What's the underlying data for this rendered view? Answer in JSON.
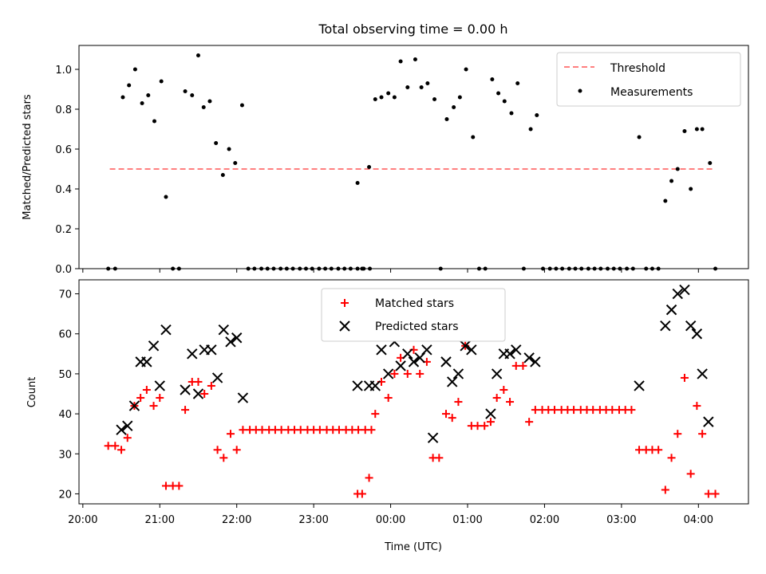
{
  "figure_title": "Total observing time = 0.00 h",
  "x_axis": {
    "label": "Time (UTC)",
    "tick_labels": [
      "20:00",
      "21:00",
      "22:00",
      "23:00",
      "00:00",
      "01:00",
      "02:00",
      "03:00",
      "04:00"
    ]
  },
  "chart_data": [
    {
      "type": "scatter",
      "panel": "top",
      "xlabel": "",
      "ylabel": "Matched/Predicted stars",
      "x_units": "hours since 20:00 UTC",
      "xlim": [
        -0.05,
        8.65
      ],
      "ylim": [
        0.0,
        1.12
      ],
      "yticks": [
        0.0,
        0.2,
        0.4,
        0.6,
        0.8,
        1.0
      ],
      "ytick_labels": [
        "0.0",
        "0.2",
        "0.4",
        "0.6",
        "0.8",
        "1.0"
      ],
      "legend": {
        "placement": "top-right"
      },
      "series": [
        {
          "name": "Threshold",
          "kind": "dashed-line",
          "color": "#ff7f7f",
          "x": [
            0.35,
            8.22
          ],
          "y": [
            0.5,
            0.5
          ]
        },
        {
          "name": "Measurements",
          "kind": "dot",
          "color": "#000000",
          "points": [
            [
              0.33,
              0.0
            ],
            [
              0.42,
              0.0
            ],
            [
              0.52,
              0.86
            ],
            [
              0.6,
              0.92
            ],
            [
              0.68,
              1.0
            ],
            [
              0.77,
              0.83
            ],
            [
              0.85,
              0.87
            ],
            [
              0.93,
              0.74
            ],
            [
              1.02,
              0.94
            ],
            [
              1.08,
              0.36
            ],
            [
              1.17,
              0.0
            ],
            [
              1.25,
              0.0
            ],
            [
              1.33,
              0.89
            ],
            [
              1.42,
              0.87
            ],
            [
              1.5,
              1.07
            ],
            [
              1.57,
              0.81
            ],
            [
              1.65,
              0.84
            ],
            [
              1.73,
              0.63
            ],
            [
              1.82,
              0.47
            ],
            [
              1.9,
              0.6
            ],
            [
              1.98,
              0.53
            ],
            [
              2.07,
              0.82
            ],
            [
              2.15,
              0.0
            ],
            [
              2.23,
              0.0
            ],
            [
              2.32,
              0.0
            ],
            [
              2.4,
              0.0
            ],
            [
              2.48,
              0.0
            ],
            [
              2.57,
              0.0
            ],
            [
              2.65,
              0.0
            ],
            [
              2.73,
              0.0
            ],
            [
              2.82,
              0.0
            ],
            [
              2.9,
              0.0
            ],
            [
              2.98,
              0.0
            ],
            [
              3.07,
              0.0
            ],
            [
              3.15,
              0.0
            ],
            [
              3.23,
              0.0
            ],
            [
              3.32,
              0.0
            ],
            [
              3.4,
              0.0
            ],
            [
              3.48,
              0.0
            ],
            [
              3.57,
              0.0
            ],
            [
              3.65,
              0.0
            ],
            [
              3.73,
              0.0
            ],
            [
              3.57,
              0.43
            ],
            [
              3.63,
              0.0
            ],
            [
              3.72,
              0.51
            ],
            [
              3.8,
              0.85
            ],
            [
              3.88,
              0.86
            ],
            [
              3.97,
              0.88
            ],
            [
              4.05,
              0.86
            ],
            [
              4.13,
              1.04
            ],
            [
              4.22,
              0.91
            ],
            [
              4.32,
              1.05
            ],
            [
              4.4,
              0.91
            ],
            [
              4.48,
              0.93
            ],
            [
              4.57,
              0.85
            ],
            [
              4.65,
              0.0
            ],
            [
              4.73,
              0.75
            ],
            [
              4.82,
              0.81
            ],
            [
              4.9,
              0.86
            ],
            [
              4.98,
              1.0
            ],
            [
              5.07,
              0.66
            ],
            [
              5.15,
              0.0
            ],
            [
              5.23,
              0.0
            ],
            [
              5.32,
              0.95
            ],
            [
              5.4,
              0.88
            ],
            [
              5.48,
              0.84
            ],
            [
              5.57,
              0.78
            ],
            [
              5.65,
              0.93
            ],
            [
              5.73,
              0.0
            ],
            [
              5.82,
              0.7
            ],
            [
              5.9,
              0.77
            ],
            [
              5.98,
              0.0
            ],
            [
              6.07,
              0.0
            ],
            [
              6.15,
              0.0
            ],
            [
              6.23,
              0.0
            ],
            [
              6.32,
              0.0
            ],
            [
              6.4,
              0.0
            ],
            [
              6.48,
              0.0
            ],
            [
              6.57,
              0.0
            ],
            [
              6.65,
              0.0
            ],
            [
              6.73,
              0.0
            ],
            [
              6.82,
              0.0
            ],
            [
              6.9,
              0.0
            ],
            [
              6.98,
              0.0
            ],
            [
              7.07,
              0.0
            ],
            [
              7.15,
              0.0
            ],
            [
              7.23,
              0.66
            ],
            [
              7.32,
              0.0
            ],
            [
              7.4,
              0.0
            ],
            [
              7.48,
              0.0
            ],
            [
              7.57,
              0.34
            ],
            [
              7.65,
              0.44
            ],
            [
              7.73,
              0.5
            ],
            [
              7.82,
              0.69
            ],
            [
              7.9,
              0.4
            ],
            [
              7.98,
              0.7
            ],
            [
              8.05,
              0.7
            ],
            [
              8.15,
              0.53
            ],
            [
              8.22,
              0.0
            ]
          ]
        }
      ]
    },
    {
      "type": "scatter",
      "panel": "bottom",
      "xlabel": "Time (UTC)",
      "ylabel": "Count",
      "x_units": "hours since 20:00 UTC",
      "xlim": [
        -0.05,
        8.65
      ],
      "ylim": [
        17.5,
        73.5
      ],
      "yticks": [
        20,
        30,
        40,
        50,
        60,
        70
      ],
      "ytick_labels": [
        "20",
        "30",
        "40",
        "50",
        "60",
        "70"
      ],
      "legend": {
        "placement": "top-center"
      },
      "series": [
        {
          "name": "Matched stars",
          "marker": "plus",
          "color": "#ff0000",
          "points": [
            [
              0.33,
              32
            ],
            [
              0.42,
              32
            ],
            [
              0.5,
              31
            ],
            [
              0.58,
              34
            ],
            [
              0.67,
              42
            ],
            [
              0.75,
              44
            ],
            [
              0.83,
              46
            ],
            [
              0.92,
              42
            ],
            [
              1.0,
              44
            ],
            [
              1.08,
              22
            ],
            [
              1.17,
              22
            ],
            [
              1.25,
              22
            ],
            [
              1.33,
              41
            ],
            [
              1.42,
              48
            ],
            [
              1.5,
              48
            ],
            [
              1.58,
              45
            ],
            [
              1.67,
              47
            ],
            [
              1.75,
              31
            ],
            [
              1.83,
              29
            ],
            [
              1.92,
              35
            ],
            [
              2.0,
              31
            ],
            [
              2.08,
              36
            ],
            [
              2.17,
              36
            ],
            [
              2.25,
              36
            ],
            [
              2.33,
              36
            ],
            [
              2.42,
              36
            ],
            [
              2.5,
              36
            ],
            [
              2.58,
              36
            ],
            [
              2.67,
              36
            ],
            [
              2.75,
              36
            ],
            [
              2.83,
              36
            ],
            [
              2.92,
              36
            ],
            [
              3.0,
              36
            ],
            [
              3.08,
              36
            ],
            [
              3.17,
              36
            ],
            [
              3.25,
              36
            ],
            [
              3.33,
              36
            ],
            [
              3.42,
              36
            ],
            [
              3.5,
              36
            ],
            [
              3.58,
              36
            ],
            [
              3.67,
              36
            ],
            [
              3.75,
              36
            ],
            [
              3.57,
              20
            ],
            [
              3.63,
              20
            ],
            [
              3.72,
              24
            ],
            [
              3.8,
              40
            ],
            [
              3.88,
              48
            ],
            [
              3.97,
              44
            ],
            [
              4.05,
              50
            ],
            [
              4.13,
              54
            ],
            [
              4.22,
              50
            ],
            [
              4.3,
              56
            ],
            [
              4.38,
              50
            ],
            [
              4.47,
              53
            ],
            [
              4.55,
              29
            ],
            [
              4.63,
              29
            ],
            [
              4.72,
              40
            ],
            [
              4.8,
              39
            ],
            [
              4.88,
              43
            ],
            [
              4.97,
              57
            ],
            [
              5.05,
              37
            ],
            [
              5.13,
              37
            ],
            [
              5.22,
              37
            ],
            [
              5.3,
              38
            ],
            [
              5.38,
              44
            ],
            [
              5.47,
              46
            ],
            [
              5.55,
              43
            ],
            [
              5.63,
              52
            ],
            [
              5.72,
              52
            ],
            [
              5.8,
              38
            ],
            [
              5.88,
              41
            ],
            [
              5.97,
              41
            ],
            [
              6.05,
              41
            ],
            [
              6.13,
              41
            ],
            [
              6.22,
              41
            ],
            [
              6.3,
              41
            ],
            [
              6.38,
              41
            ],
            [
              6.47,
              41
            ],
            [
              6.55,
              41
            ],
            [
              6.63,
              41
            ],
            [
              6.72,
              41
            ],
            [
              6.8,
              41
            ],
            [
              6.88,
              41
            ],
            [
              6.97,
              41
            ],
            [
              7.05,
              41
            ],
            [
              7.13,
              41
            ],
            [
              7.23,
              31
            ],
            [
              7.32,
              31
            ],
            [
              7.4,
              31
            ],
            [
              7.48,
              31
            ],
            [
              7.57,
              21
            ],
            [
              7.65,
              29
            ],
            [
              7.73,
              35
            ],
            [
              7.82,
              49
            ],
            [
              7.9,
              25
            ],
            [
              7.98,
              42
            ],
            [
              8.05,
              35
            ],
            [
              8.13,
              20
            ],
            [
              8.22,
              20
            ]
          ]
        },
        {
          "name": "Predicted stars",
          "marker": "x",
          "color": "#000000",
          "points": [
            [
              0.5,
              36
            ],
            [
              0.58,
              37
            ],
            [
              0.67,
              42
            ],
            [
              0.75,
              53
            ],
            [
              0.83,
              53
            ],
            [
              0.92,
              57
            ],
            [
              1.0,
              47
            ],
            [
              1.08,
              61
            ],
            [
              1.33,
              46
            ],
            [
              1.42,
              55
            ],
            [
              1.5,
              45
            ],
            [
              1.58,
              56
            ],
            [
              1.67,
              56
            ],
            [
              1.75,
              49
            ],
            [
              1.83,
              61
            ],
            [
              1.92,
              58
            ],
            [
              2.0,
              59
            ],
            [
              2.08,
              44
            ],
            [
              3.57,
              47
            ],
            [
              3.72,
              47
            ],
            [
              3.8,
              47
            ],
            [
              3.88,
              56
            ],
            [
              3.97,
              50
            ],
            [
              4.05,
              58
            ],
            [
              4.13,
              52
            ],
            [
              4.22,
              55
            ],
            [
              4.3,
              53
            ],
            [
              4.38,
              54
            ],
            [
              4.47,
              56
            ],
            [
              4.55,
              34
            ],
            [
              4.72,
              53
            ],
            [
              4.8,
              48
            ],
            [
              4.88,
              50
            ],
            [
              4.97,
              57
            ],
            [
              5.05,
              56
            ],
            [
              5.3,
              40
            ],
            [
              5.38,
              50
            ],
            [
              5.47,
              55
            ],
            [
              5.55,
              55
            ],
            [
              5.63,
              56
            ],
            [
              5.8,
              54
            ],
            [
              5.88,
              53
            ],
            [
              7.23,
              47
            ],
            [
              7.57,
              62
            ],
            [
              7.65,
              66
            ],
            [
              7.73,
              70
            ],
            [
              7.82,
              71
            ],
            [
              7.9,
              62
            ],
            [
              7.98,
              60
            ],
            [
              8.05,
              50
            ],
            [
              8.13,
              38
            ]
          ]
        }
      ]
    }
  ]
}
